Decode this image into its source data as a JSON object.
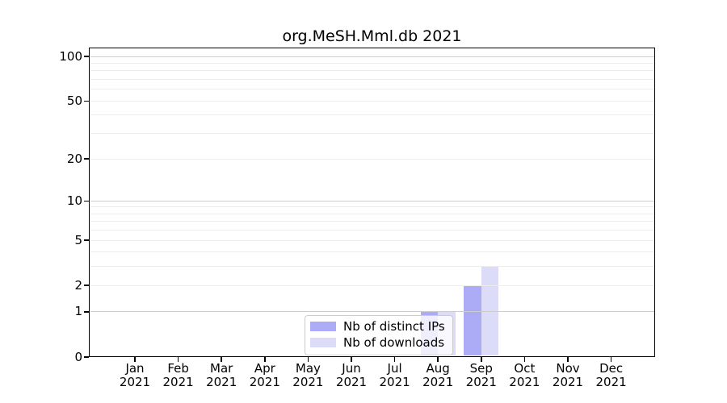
{
  "figure": {
    "title": "org.MeSH.Mml.db 2021"
  },
  "legend": {
    "items": [
      {
        "label": "Nb of distinct IPs",
        "color": "#acacf6"
      },
      {
        "label": "Nb of downloads",
        "color": "#dcdcf8"
      }
    ]
  },
  "axes": {
    "y_tick_labels": [
      "0",
      "1",
      "2",
      "5",
      "10",
      "20",
      "50",
      "100"
    ],
    "x_tick_labels": [
      {
        "month": "Jan",
        "year": "2021"
      },
      {
        "month": "Feb",
        "year": "2021"
      },
      {
        "month": "Mar",
        "year": "2021"
      },
      {
        "month": "Apr",
        "year": "2021"
      },
      {
        "month": "May",
        "year": "2021"
      },
      {
        "month": "Jun",
        "year": "2021"
      },
      {
        "month": "Jul",
        "year": "2021"
      },
      {
        "month": "Aug",
        "year": "2021"
      },
      {
        "month": "Sep",
        "year": "2021"
      },
      {
        "month": "Oct",
        "year": "2021"
      },
      {
        "month": "Nov",
        "year": "2021"
      },
      {
        "month": "Dec",
        "year": "2021"
      }
    ]
  },
  "chart_data": {
    "type": "bar",
    "title": "org.MeSH.Mml.db 2021",
    "categories": [
      "Jan 2021",
      "Feb 2021",
      "Mar 2021",
      "Apr 2021",
      "May 2021",
      "Jun 2021",
      "Jul 2021",
      "Aug 2021",
      "Sep 2021",
      "Oct 2021",
      "Nov 2021",
      "Dec 2021"
    ],
    "series": [
      {
        "name": "Nb of distinct IPs",
        "color": "#acacf6",
        "values": [
          0,
          0,
          0,
          0,
          0,
          0,
          0,
          1,
          2,
          0,
          0,
          0
        ]
      },
      {
        "name": "Nb of downloads",
        "color": "#dcdcf8",
        "values": [
          0,
          0,
          0,
          0,
          0,
          0,
          0,
          1,
          3,
          0,
          0,
          0
        ]
      }
    ],
    "xlabel": "",
    "ylabel": "",
    "yscale": "log1p",
    "ylim": [
      0,
      115
    ],
    "y_ticks": [
      0,
      1,
      2,
      5,
      10,
      20,
      50,
      100
    ],
    "grid": true,
    "grid_major_at": [
      1,
      10,
      100
    ],
    "grid_minor_at": [
      2,
      3,
      4,
      5,
      6,
      7,
      8,
      9,
      20,
      30,
      40,
      50,
      60,
      70,
      80,
      90
    ],
    "legend_position": "lower center",
    "colors": {
      "grid_major": "#cccccc",
      "grid_minor": "#ececec",
      "spine": "#000000",
      "legend_border": "#cccccc",
      "legend_bg": "rgba(255,255,255,0.8)"
    }
  }
}
